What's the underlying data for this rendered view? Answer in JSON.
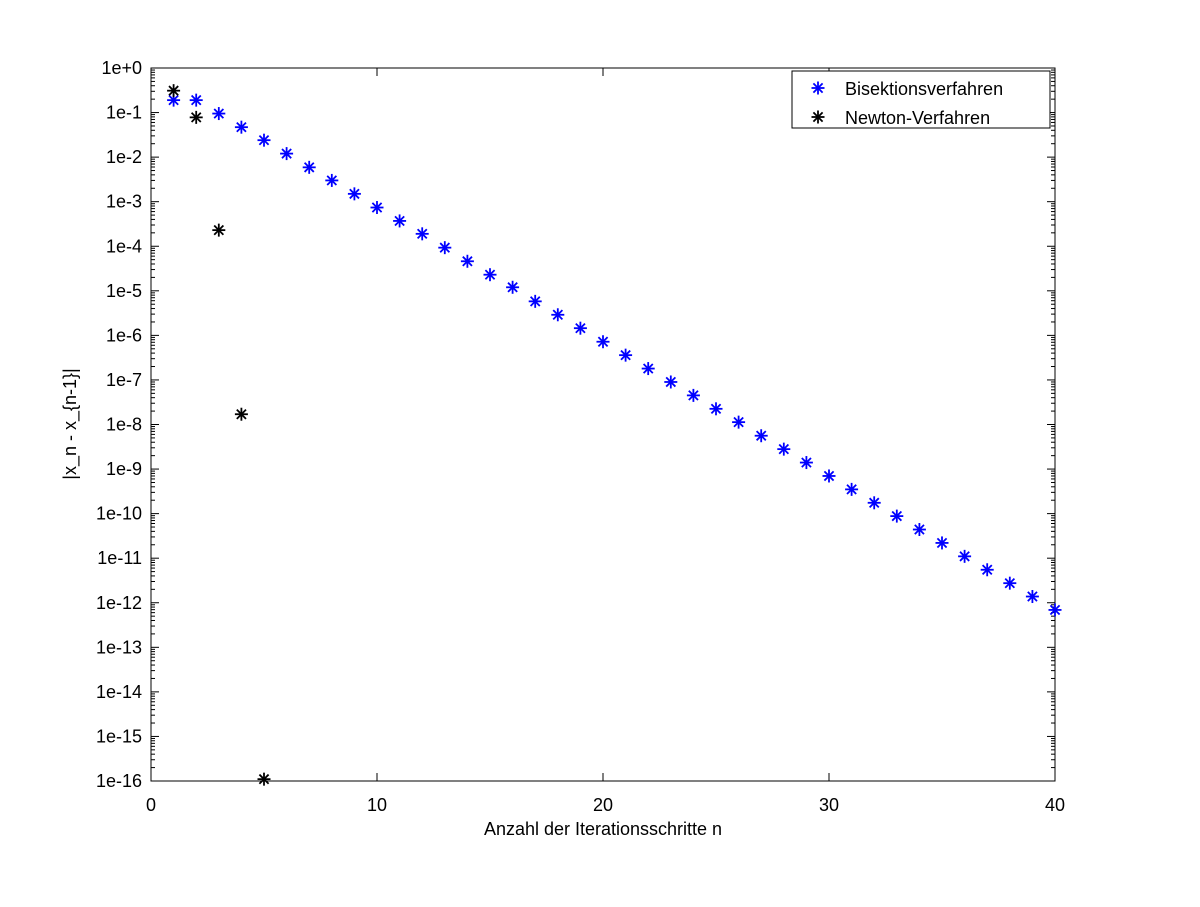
{
  "chart_data": {
    "type": "scatter",
    "xlabel": "Anzahl der Iterationsschritte n",
    "ylabel": "|x_n - x_{n-1}|",
    "xlim": [
      0,
      40
    ],
    "ylim": [
      1e-16,
      1
    ],
    "yscale": "log",
    "grid": false,
    "legend_position": "top-right",
    "marker": "asterisk",
    "x_ticks": [
      0,
      10,
      20,
      30,
      40
    ],
    "x_tick_labels": [
      "0",
      "10",
      "20",
      "30",
      "40"
    ],
    "y_ticks": [
      1,
      0.1,
      0.01,
      0.001,
      0.0001,
      1e-05,
      1e-06,
      1e-07,
      1e-08,
      1e-09,
      1e-10,
      1e-11,
      1e-12,
      1e-13,
      1e-14,
      1e-15,
      1e-16
    ],
    "y_tick_labels": [
      "1e+0",
      "1e-1",
      "1e-2",
      "1e-3",
      "1e-4",
      "1e-5",
      "1e-6",
      "1e-7",
      "1e-8",
      "1e-9",
      "1e-10",
      "1e-11",
      "1e-12",
      "1e-13",
      "1e-14",
      "1e-15",
      "1e-16"
    ],
    "series": [
      {
        "name": "Bisektionsverfahren",
        "color": "#0000ff",
        "x": [
          1,
          2,
          3,
          4,
          5,
          6,
          7,
          8,
          9,
          10,
          11,
          12,
          13,
          14,
          15,
          16,
          17,
          18,
          19,
          20,
          21,
          22,
          23,
          24,
          25,
          26,
          27,
          28,
          29,
          30,
          31,
          32,
          33,
          34,
          35,
          36,
          37,
          38,
          39,
          40
        ],
        "y": [
          0.19,
          0.19,
          0.095,
          0.047,
          0.024,
          0.012,
          0.0059,
          0.003,
          0.0015,
          0.00074,
          0.00037,
          0.00019,
          9.3e-05,
          4.6e-05,
          2.3e-05,
          1.2e-05,
          5.8e-06,
          2.9e-06,
          1.45e-06,
          7.2e-07,
          3.6e-07,
          1.8e-07,
          9e-08,
          4.5e-08,
          2.25e-08,
          1.13e-08,
          5.6e-09,
          2.8e-09,
          1.4e-09,
          7e-10,
          3.5e-10,
          1.75e-10,
          8.8e-11,
          4.4e-11,
          2.2e-11,
          1.1e-11,
          5.5e-12,
          2.75e-12,
          1.38e-12,
          6.9e-13
        ]
      },
      {
        "name": "Newton-Verfahren",
        "color": "#000000",
        "x": [
          1,
          2,
          3,
          4,
          5
        ],
        "y": [
          0.31,
          0.078,
          0.00023,
          1.7e-08,
          1.1e-16
        ]
      }
    ]
  }
}
